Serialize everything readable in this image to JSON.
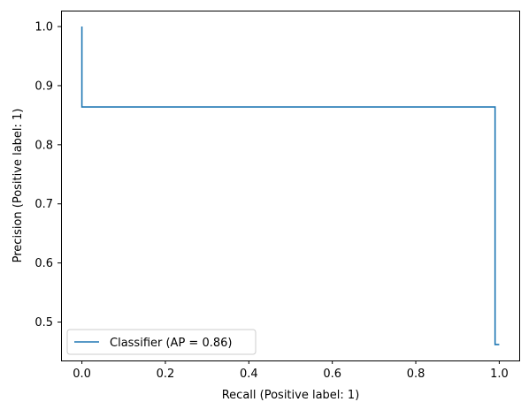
{
  "chart_data": {
    "type": "line",
    "title": "",
    "xlabel": "Recall (Positive label: 1)",
    "ylabel": "Precision (Positive label: 1)",
    "xlim": [
      -0.05,
      1.05
    ],
    "ylim": [
      0.435,
      1.027
    ],
    "xticks": [
      0.0,
      0.2,
      0.4,
      0.6,
      0.8,
      1.0
    ],
    "xtick_labels": [
      "0.0",
      "0.2",
      "0.4",
      "0.6",
      "0.8",
      "1.0"
    ],
    "yticks": [
      0.5,
      0.6,
      0.7,
      0.8,
      0.9,
      1.0
    ],
    "ytick_labels": [
      "0.5",
      "0.6",
      "0.7",
      "0.8",
      "0.9",
      "1.0"
    ],
    "grid": false,
    "legend_position": "lower-left",
    "series": [
      {
        "name": "Classifier (AP = 0.86)",
        "color": "#1f77b4",
        "step": "post",
        "x": [
          0.0,
          0.0,
          0.99,
          0.99,
          1.0
        ],
        "y": [
          1.0,
          0.864,
          0.864,
          0.462,
          0.462
        ]
      }
    ]
  }
}
